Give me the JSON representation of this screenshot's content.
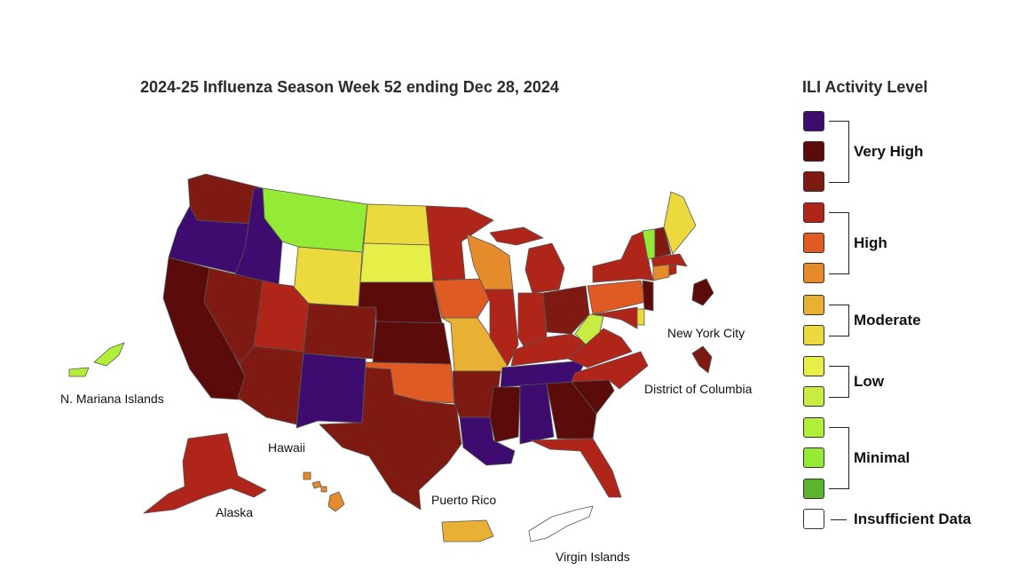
{
  "title": "2024-25 Influenza Season Week 52 ending Dec 28, 2024",
  "legend": {
    "title": "ILI Activity Level",
    "swatches": [
      "#3e0b6e",
      "#5c0b0b",
      "#7e1a12",
      "#b0251a",
      "#e05a24",
      "#e58b2c",
      "#e9b134",
      "#ebd93d",
      "#e6ee48",
      "#c8ec42",
      "#b1ee3a",
      "#94ea35",
      "#5db52f",
      "#ffffff"
    ],
    "groups": [
      {
        "label": "Very High"
      },
      {
        "label": "High"
      },
      {
        "label": "Moderate"
      },
      {
        "label": "Low"
      },
      {
        "label": "Minimal"
      },
      {
        "label": "Insufficient Data"
      }
    ]
  },
  "labels": {
    "nyc": "New York City",
    "dc": "District of Columbia",
    "nmi": "N. Mariana Islands",
    "hawaii": "Hawaii",
    "alaska": "Alaska",
    "pr": "Puerto Rico",
    "vi": "Virgin Islands"
  },
  "state_colors": {
    "WA": "#7e1a12",
    "OR": "#3e0b6e",
    "CA": "#5c0b0b",
    "ID": "#3e0b6e",
    "NV": "#7e1a12",
    "MT": "#94ea35",
    "WY": "#ebd93d",
    "UT": "#b0251a",
    "AZ": "#7e1a12",
    "CO": "#7e1a12",
    "NM": "#3e0b6e",
    "ND": "#ebd93d",
    "SD": "#e6ee48",
    "NE": "#5c0b0b",
    "KS": "#5c0b0b",
    "OK": "#e05a24",
    "TX": "#7e1a12",
    "MN": "#b0251a",
    "IA": "#e05a24",
    "MO": "#e9b134",
    "AR": "#7e1a12",
    "LA": "#3e0b6e",
    "WI": "#e58b2c",
    "IL": "#b0251a",
    "MS": "#5c0b0b",
    "MI": "#b0251a",
    "IN": "#b0251a",
    "OH": "#7e1a12",
    "KY": "#b0251a",
    "TN": "#3e0b6e",
    "AL": "#3e0b6e",
    "GA": "#5c0b0b",
    "FL": "#b0251a",
    "SC": "#5c0b0b",
    "NC": "#b0251a",
    "VA": "#b0251a",
    "WV": "#c8ec42",
    "PA": "#e05a24",
    "NY": "#b0251a",
    "VT": "#94ea35",
    "NH": "#7e1a12",
    "ME": "#ebd93d",
    "MA": "#b0251a",
    "CT": "#e58b2c",
    "RI": "#b0251a",
    "NJ": "#5c0b0b",
    "DE": "#ebd93d",
    "MD": "#b0251a",
    "AK": "#b0251a",
    "HI": "#e58b2c",
    "PR": "#e9b134",
    "VI": "#ffffff",
    "NMI": "#b1ee3a",
    "NYC": "#5c0b0b",
    "DC": "#7e1a12"
  }
}
